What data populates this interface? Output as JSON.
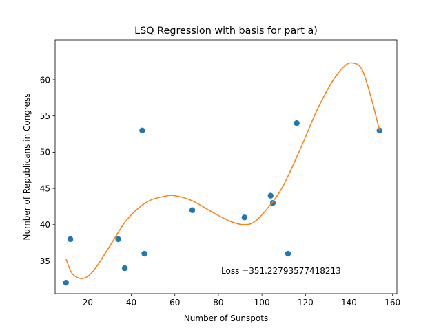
{
  "chart_data": {
    "type": "scatter",
    "title": "LSQ Regression with basis for part a)",
    "xlabel": "Number of Sunspots",
    "ylabel": "Number of Republicans in Congress",
    "xlim": [
      5,
      162
    ],
    "ylim": [
      30.5,
      65.5
    ],
    "xticks": [
      20,
      40,
      60,
      80,
      100,
      120,
      140,
      160
    ],
    "yticks": [
      35,
      40,
      45,
      50,
      55,
      60
    ],
    "grid": false,
    "annotation": "Loss =351.22793577418213",
    "points_color": "#1f77b4",
    "curve_color": "#ff7f0e",
    "series": [
      {
        "type": "scatter",
        "x": [
          10,
          12,
          34,
          37,
          45,
          46,
          68,
          92,
          104,
          105,
          112,
          116,
          154
        ],
        "y": [
          32,
          38,
          38,
          34,
          53,
          36,
          42,
          41,
          44,
          43,
          36,
          54,
          53
        ]
      },
      {
        "type": "line",
        "x": [
          10,
          13,
          18,
          23,
          30,
          38,
          47,
          55,
          60,
          68,
          78,
          86,
          92,
          97,
          104,
          110,
          118,
          125,
          132,
          138,
          142,
          146,
          150,
          154
        ],
        "y": [
          35.3,
          33.2,
          32.6,
          33.8,
          37.0,
          40.7,
          43.1,
          43.9,
          44.0,
          43.3,
          41.6,
          40.4,
          40.0,
          40.5,
          42.8,
          45.5,
          50.7,
          55.6,
          59.6,
          61.9,
          62.3,
          61.4,
          57.7,
          53.0
        ]
      }
    ]
  }
}
